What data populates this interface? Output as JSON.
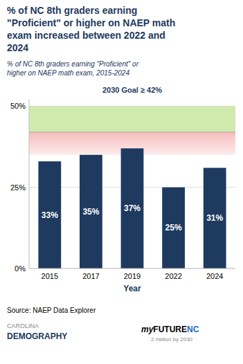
{
  "chart_data": {
    "type": "bar",
    "title": "% of NC 8th graders earning\n\"Proficient\" or higher on NAEP math\nexam increased between 2022 and\n2024",
    "subtitle": "% of NC 8th graders earning \"Proficient\" or\nhigher on NAEP math exam, 2015-2024",
    "goal_label": "2030 Goal ≥ 42%",
    "x_label": "Year",
    "categories": [
      "2015",
      "2017",
      "2019",
      "2022",
      "2024"
    ],
    "values": [
      33,
      35,
      37,
      25,
      31
    ],
    "value_labels": [
      "33%",
      "35%",
      "37%",
      "25%",
      "31%"
    ],
    "data_labels": true,
    "color": "#1e3a5f",
    "ylim": [
      0,
      52
    ],
    "yticks": [
      {
        "value": 0,
        "label": "0%"
      },
      {
        "value": 25,
        "label": "25%"
      },
      {
        "value": 50,
        "label": "50%"
      }
    ],
    "grid": true,
    "goal_min": 42,
    "goal_max": 50,
    "shading_bottom": 35,
    "source": "Source: NAEP Data Explorer",
    "annotations": [
      "CAROLINA",
      "DEMOGRAPHY",
      "my",
      "FUTURE",
      "NC",
      "2 million by 2030"
    ]
  }
}
